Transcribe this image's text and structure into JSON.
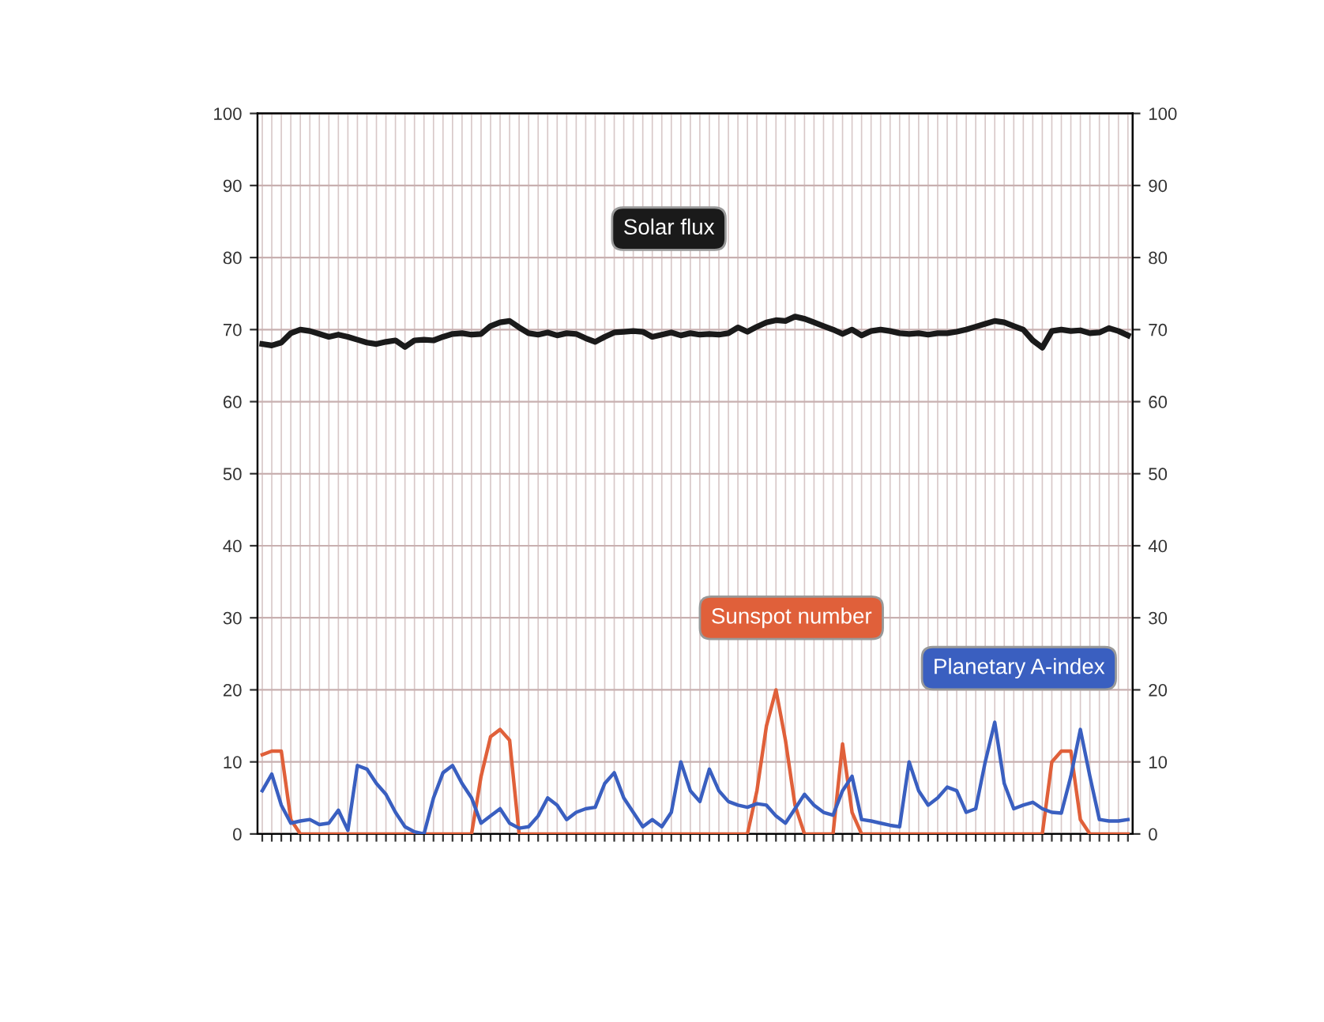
{
  "chart_data": {
    "type": "line",
    "categories": [
      null,
      null,
      null,
      null,
      null,
      null,
      null,
      null,
      null,
      null,
      null,
      null,
      null,
      null,
      null,
      null,
      null,
      null,
      null,
      null,
      null,
      null,
      null,
      null,
      null,
      null,
      null,
      null,
      null,
      null,
      null,
      null,
      null,
      null,
      null,
      null,
      null,
      null,
      null,
      null,
      null,
      null,
      null,
      null,
      null,
      null,
      null,
      null,
      null,
      null,
      null,
      null,
      null,
      null,
      null,
      null,
      null,
      null,
      null,
      null,
      null,
      null,
      null,
      null,
      null,
      null,
      null,
      null,
      null,
      null,
      null,
      null,
      null,
      null,
      null,
      null,
      null,
      null,
      null,
      null,
      null,
      null,
      null,
      null,
      null,
      null,
      null,
      null,
      null,
      null,
      null,
      null
    ],
    "series": [
      {
        "name": "Solar flux",
        "color": "#1a1a1a",
        "values": [
          68,
          67.8,
          68.2,
          69.5,
          70,
          69.8,
          69.4,
          69,
          69.3,
          69,
          68.6,
          68.2,
          68,
          68.3,
          68.5,
          67.6,
          68.5,
          68.6,
          68.5,
          69,
          69.4,
          69.5,
          69.3,
          69.4,
          70.5,
          71,
          71.2,
          70.3,
          69.5,
          69.3,
          69.6,
          69.2,
          69.5,
          69.4,
          68.8,
          68.3,
          69,
          69.6,
          69.7,
          69.8,
          69.7,
          69,
          69.3,
          69.6,
          69.2,
          69.5,
          69.3,
          69.4,
          69.3,
          69.5,
          70.3,
          69.7,
          70.4,
          71,
          71.3,
          71.2,
          71.8,
          71.5,
          71,
          70.5,
          70,
          69.4,
          70,
          69.2,
          69.8,
          70,
          69.8,
          69.5,
          69.4,
          69.5,
          69.3,
          69.5,
          69.5,
          69.7,
          70,
          70.4,
          70.8,
          71.2,
          71,
          70.5,
          70,
          68.5,
          67.5,
          69.8,
          70,
          69.8,
          69.9,
          69.5,
          69.6,
          70.2,
          69.8,
          69.2
        ]
      },
      {
        "name": "Sunspot number",
        "color": "#e0603a",
        "values": [
          11,
          11.5,
          11.5,
          2,
          0,
          0,
          0,
          0,
          0,
          0,
          0,
          0,
          0,
          0,
          0,
          0,
          0,
          0,
          0,
          0,
          0,
          0,
          0,
          8,
          13.5,
          14.5,
          13,
          0,
          0,
          0,
          0,
          0,
          0,
          0,
          0,
          0,
          0,
          0,
          0,
          0,
          0,
          0,
          0,
          0,
          0,
          0,
          0,
          0,
          0,
          0,
          0,
          0,
          6,
          15,
          20,
          13,
          4,
          0,
          0,
          0,
          0,
          12.5,
          3,
          0,
          0,
          0,
          0,
          0,
          0,
          0,
          0,
          0,
          0,
          0,
          0,
          0,
          0,
          0,
          0,
          0,
          0,
          0,
          0,
          10,
          11.5,
          11.5,
          2,
          0,
          0,
          0,
          0,
          0
        ]
      },
      {
        "name": "Planetary A-index",
        "color": "#3a5fc0",
        "values": [
          6,
          8.3,
          4,
          1.5,
          1.8,
          2,
          1.3,
          1.5,
          3.3,
          0.5,
          9.5,
          9,
          7,
          5.5,
          3,
          1,
          0.3,
          0,
          5,
          8.5,
          9.5,
          7,
          5,
          1.5,
          2.5,
          3.5,
          1.5,
          0.8,
          1,
          2.5,
          5,
          4,
          2,
          3,
          3.5,
          3.7,
          7,
          8.5,
          5,
          3,
          1,
          2,
          1,
          3,
          10,
          6,
          4.5,
          9,
          6,
          4.5,
          4,
          3.7,
          4.2,
          4,
          2.5,
          1.5,
          3.5,
          5.5,
          4,
          3,
          2.6,
          6,
          8,
          2,
          1.8,
          1.5,
          1.2,
          1,
          10,
          6,
          4,
          5,
          6.5,
          6,
          3,
          3.5,
          10,
          15.5,
          7,
          3.5,
          4,
          4.4,
          3.5,
          3,
          2.9,
          8,
          14.5,
          8,
          2,
          1.8,
          1.8,
          2
        ]
      }
    ],
    "ylim": [
      0,
      100
    ],
    "yticks": [
      0,
      10,
      20,
      30,
      40,
      50,
      60,
      70,
      80,
      90,
      100
    ],
    "y2lim": [
      0,
      100
    ],
    "y2ticks": [
      0,
      10,
      20,
      30,
      40,
      50,
      60,
      70,
      80,
      90,
      100
    ],
    "grid": true,
    "legend": false,
    "marker": "none",
    "line_style": "solid"
  }
}
